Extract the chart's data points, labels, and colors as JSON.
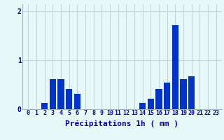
{
  "hours": [
    0,
    1,
    2,
    3,
    4,
    5,
    6,
    7,
    8,
    9,
    10,
    11,
    12,
    13,
    14,
    15,
    16,
    17,
    18,
    19,
    20,
    21,
    22,
    23
  ],
  "values": [
    0,
    0,
    0.13,
    0.62,
    0.62,
    0.42,
    0.32,
    0,
    0,
    0,
    0,
    0,
    0,
    0,
    0.13,
    0.22,
    0.42,
    0.55,
    1.72,
    0.62,
    0.68,
    0,
    0,
    0
  ],
  "bar_color": "#0033cc",
  "bg_color": "#e8f8f8",
  "grid_color": "#c0d8d8",
  "axis_color": "#0000aa",
  "title": "Précipitations 1h ( mm )",
  "ylim": [
    0,
    2.15
  ],
  "yticks": [
    0,
    1,
    2
  ],
  "title_fontsize": 8,
  "tick_fontsize": 6
}
